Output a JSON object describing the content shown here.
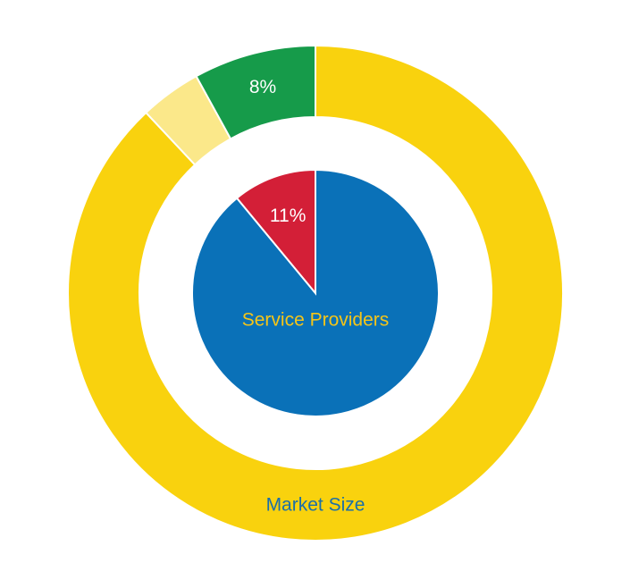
{
  "chart_data": [
    {
      "type": "donut",
      "label": "Market Size",
      "label_color": "#1b6fa8",
      "values": [
        88,
        4,
        8
      ],
      "value_labels": [
        null,
        null,
        "8%"
      ],
      "colors": [
        "#f9d20e",
        "#fbe88a",
        "#169b4a"
      ]
    },
    {
      "type": "pie",
      "label": "Service Providers",
      "label_color": "#f5c518",
      "values": [
        89,
        11
      ],
      "value_labels": [
        null,
        "11%"
      ],
      "colors": [
        "#0a71b8",
        "#d31f37"
      ]
    }
  ]
}
